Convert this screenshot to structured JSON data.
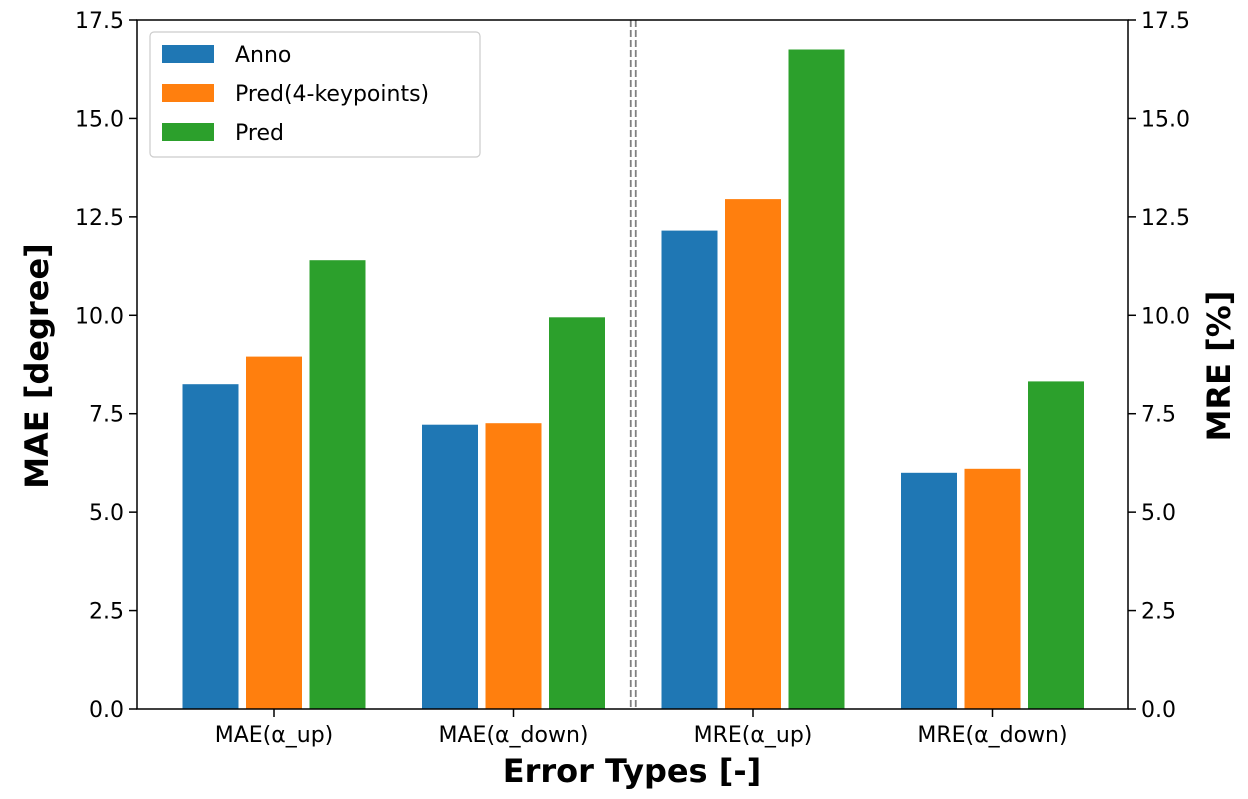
{
  "chart_data": {
    "type": "bar",
    "categories": [
      "MAE(α_up)",
      "MAE(α_down)",
      "MRE(α_up)",
      "MRE(α_down)"
    ],
    "series": [
      {
        "name": "Anno",
        "color": "#1f77b4",
        "values": [
          8.25,
          7.22,
          12.15,
          6.0
        ]
      },
      {
        "name": "Pred(4-keypoints)",
        "color": "#ff7f0e",
        "values": [
          8.95,
          7.26,
          12.95,
          6.1
        ]
      },
      {
        "name": "Pred",
        "color": "#2ca02c",
        "values": [
          11.4,
          9.95,
          16.75,
          8.32
        ]
      }
    ],
    "xlabel": "Error Types [-]",
    "ylabel_left": "MAE [degree]",
    "ylabel_right": "MRE [%]",
    "ylim": [
      0,
      17.5
    ],
    "yticks": [
      "0.0",
      "2.5",
      "5.0",
      "7.5",
      "10.0",
      "12.5",
      "15.0",
      "17.5"
    ],
    "ytick_values": [
      0,
      2.5,
      5,
      7.5,
      10,
      12.5,
      15,
      17.5
    ],
    "separator": "dashed vertical line between MAE and MRE groups",
    "legend_position": "top-left",
    "grid": false
  }
}
